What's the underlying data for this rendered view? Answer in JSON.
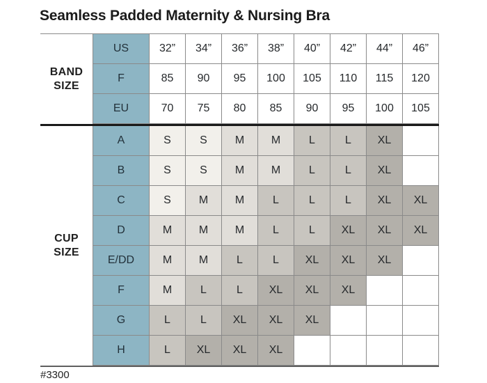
{
  "colors": {
    "label_col_bg": "#8db5c4",
    "section_divider": "#1a1a1a",
    "S": "#f2f0eb",
    "M": "#e1ded9",
    "L": "#c8c5bf",
    "XL": "#b3b0aa",
    "empty": "#ffffff"
  },
  "chart_data": {
    "type": "table",
    "title": "Seamless Padded Maternity & Nursing Bra",
    "footnote": "#3300",
    "cell_shading_legend": "cell background encodes garment size: S lightest to XL darkest, blank = not available",
    "sections": [
      {
        "label": "BAND SIZE",
        "rows": [
          {
            "label": "US",
            "values": [
              "32”",
              "34”",
              "36”",
              "38”",
              "40”",
              "42”",
              "44”",
              "46”"
            ]
          },
          {
            "label": "F",
            "values": [
              "85",
              "90",
              "95",
              "100",
              "105",
              "110",
              "115",
              "120"
            ]
          },
          {
            "label": "EU",
            "values": [
              "70",
              "75",
              "80",
              "85",
              "90",
              "95",
              "100",
              "105"
            ]
          }
        ]
      },
      {
        "label": "CUP SIZE",
        "rows": [
          {
            "label": "A",
            "values": [
              "S",
              "S",
              "M",
              "M",
              "L",
              "L",
              "XL",
              ""
            ]
          },
          {
            "label": "B",
            "values": [
              "S",
              "S",
              "M",
              "M",
              "L",
              "L",
              "XL",
              ""
            ]
          },
          {
            "label": "C",
            "values": [
              "S",
              "M",
              "M",
              "L",
              "L",
              "L",
              "XL",
              "XL"
            ]
          },
          {
            "label": "D",
            "values": [
              "M",
              "M",
              "M",
              "L",
              "L",
              "XL",
              "XL",
              "XL"
            ]
          },
          {
            "label": "E/DD",
            "values": [
              "M",
              "M",
              "L",
              "L",
              "XL",
              "XL",
              "XL",
              ""
            ]
          },
          {
            "label": "F",
            "values": [
              "M",
              "L",
              "L",
              "XL",
              "XL",
              "XL",
              "",
              ""
            ]
          },
          {
            "label": "G",
            "values": [
              "L",
              "L",
              "XL",
              "XL",
              "XL",
              "",
              "",
              ""
            ]
          },
          {
            "label": "H",
            "values": [
              "L",
              "XL",
              "XL",
              "XL",
              "",
              "",
              "",
              ""
            ]
          }
        ]
      }
    ]
  }
}
